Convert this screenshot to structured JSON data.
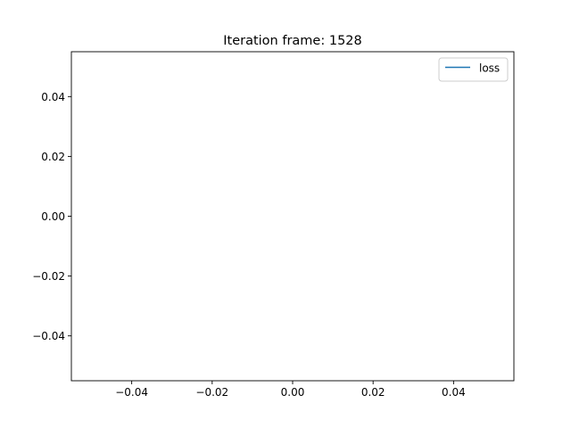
{
  "chart_data": {
    "type": "line",
    "title": "Iteration frame: 1528",
    "xlabel": "",
    "ylabel": "",
    "xlim": [
      -0.055,
      0.055
    ],
    "ylim": [
      -0.055,
      0.055
    ],
    "x_ticks": [
      -0.04,
      -0.02,
      0.0,
      0.02,
      0.04
    ],
    "x_tick_labels": [
      "−0.04",
      "−0.02",
      "0.00",
      "0.02",
      "0.04"
    ],
    "y_ticks": [
      -0.04,
      -0.02,
      0.0,
      0.02,
      0.04
    ],
    "y_tick_labels": [
      "−0.04",
      "−0.02",
      "0.00",
      "0.02",
      "0.04"
    ],
    "grid": false,
    "legend_position": "upper right",
    "series": [
      {
        "name": "loss",
        "color": "#1f77b4",
        "x": [],
        "y": []
      }
    ]
  }
}
